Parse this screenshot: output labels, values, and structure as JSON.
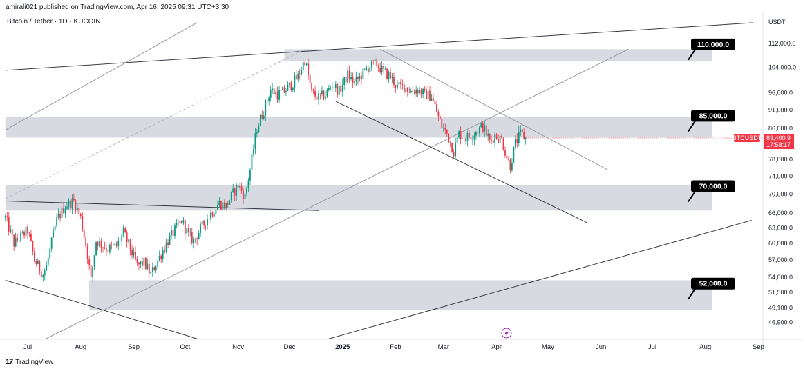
{
  "header": {
    "publisher_line": "amirali021 published on TradingView.com, Apr 16, 2025 09:31 UTC+3:30",
    "symbol_line": "Bitcoin / Tether · 1D · KUCOIN"
  },
  "footer": {
    "brand": "TradingView"
  },
  "colors": {
    "zone": "#d1d4dc",
    "up": "#089981",
    "down": "#f23645",
    "line": "#131722",
    "grid": "#ffffff",
    "callout": "#000000",
    "price_tag": "#f23645"
  },
  "chart_data": {
    "type": "candlestick",
    "symbol": "BTCUSDT",
    "currency": "USDT",
    "current_price": "83,400.9",
    "countdown": "17:58:17",
    "price_scale": "log",
    "ylim": [
      44500,
      120500
    ],
    "y_ticks": [
      "112,000.0",
      "104,000.0",
      "96,000.0",
      "91,000.0",
      "86,000.0",
      "82,000.0",
      "78,000.0",
      "74,000.0",
      "70,000.0",
      "66,000.0",
      "63,000.0",
      "60,000.0",
      "57,000.0",
      "54,000.0",
      "51,500.0",
      "49,100.0",
      "46,900.0"
    ],
    "x_ticks": [
      {
        "label": "Jul",
        "day": 0
      },
      {
        "label": "Aug",
        "day": 31
      },
      {
        "label": "Sep",
        "day": 62
      },
      {
        "label": "Oct",
        "day": 92
      },
      {
        "label": "Nov",
        "day": 123
      },
      {
        "label": "Dec",
        "day": 153
      },
      {
        "label": "2025",
        "day": 184
      },
      {
        "label": "Feb",
        "day": 215
      },
      {
        "label": "Mar",
        "day": 243
      },
      {
        "label": "Apr",
        "day": 274
      },
      {
        "label": "May",
        "day": 304
      },
      {
        "label": "Jun",
        "day": 335
      },
      {
        "label": "Jul",
        "day": 365
      },
      {
        "label": "Aug",
        "day": 396
      },
      {
        "label": "Sep",
        "day": 427
      }
    ],
    "x_start_date": "2024-07-01",
    "price_path": [
      [
        -13,
        65000
      ],
      [
        -8,
        60000
      ],
      [
        0,
        62500
      ],
      [
        4,
        57000
      ],
      [
        9,
        54500
      ],
      [
        11,
        55800
      ],
      [
        17,
        64500
      ],
      [
        22,
        67500
      ],
      [
        27,
        68500
      ],
      [
        31,
        65000
      ],
      [
        35,
        58000
      ],
      [
        37,
        53500
      ],
      [
        40,
        60500
      ],
      [
        47,
        59000
      ],
      [
        52,
        59500
      ],
      [
        56,
        62000
      ],
      [
        64,
        56000
      ],
      [
        68,
        56500
      ],
      [
        72,
        54500
      ],
      [
        77,
        57500
      ],
      [
        82,
        60500
      ],
      [
        87,
        63000
      ],
      [
        90,
        64500
      ],
      [
        94,
        61500
      ],
      [
        97,
        60500
      ],
      [
        105,
        65000
      ],
      [
        112,
        68000
      ],
      [
        116,
        67500
      ],
      [
        119,
        69500
      ],
      [
        123,
        72000
      ],
      [
        127,
        69500
      ],
      [
        130,
        75500
      ],
      [
        134,
        86000
      ],
      [
        138,
        91000
      ],
      [
        142,
        97000
      ],
      [
        146,
        95500
      ],
      [
        150,
        96500
      ],
      [
        154,
        98500
      ],
      [
        158,
        101000
      ],
      [
        162,
        106500
      ],
      [
        166,
        96000
      ],
      [
        170,
        94500
      ],
      [
        174,
        95500
      ],
      [
        178,
        98500
      ],
      [
        182,
        96500
      ],
      [
        187,
        101500
      ],
      [
        191,
        99000
      ],
      [
        196,
        102000
      ],
      [
        200,
        104500
      ],
      [
        204,
        105000
      ],
      [
        208,
        102500
      ],
      [
        212,
        101000
      ],
      [
        216,
        97800
      ],
      [
        220,
        98000
      ],
      [
        224,
        96500
      ],
      [
        228,
        97000
      ],
      [
        232,
        95500
      ],
      [
        236,
        95000
      ],
      [
        240,
        89000
      ],
      [
        242,
        86500
      ],
      [
        245,
        84500
      ],
      [
        249,
        80000
      ],
      [
        252,
        84500
      ],
      [
        256,
        83500
      ],
      [
        259,
        84000
      ],
      [
        263,
        85500
      ],
      [
        266,
        86500
      ],
      [
        270,
        82500
      ],
      [
        273,
        84000
      ],
      [
        277,
        83000
      ],
      [
        280,
        78500
      ],
      [
        282,
        76500
      ],
      [
        285,
        82000
      ],
      [
        288,
        84500
      ],
      [
        291,
        83400.9
      ]
    ],
    "zones": [
      {
        "label": "110,000.0",
        "low": 106000,
        "high": 110000,
        "day_from": 150,
        "day_to": 400
      },
      {
        "label": "85,000.0",
        "low": 83500,
        "high": 89000,
        "day_from": -13,
        "day_to": 400
      },
      {
        "label": "70,000.0",
        "low": 66500,
        "high": 72000,
        "day_from": -13,
        "day_to": 400
      },
      {
        "label": "52,000.0",
        "low": 48700,
        "high": 53500,
        "day_from": 36,
        "day_to": 400
      }
    ],
    "trend_lines": [
      {
        "from": [
          -13,
          103000
        ],
        "to": [
          424,
          119500
        ],
        "style": "solid"
      },
      {
        "from": [
          -13,
          68500
        ],
        "to": [
          170,
          66500
        ],
        "style": "solid"
      },
      {
        "from": [
          -13,
          53500
        ],
        "to": [
          100,
          44500
        ],
        "style": "solid"
      },
      {
        "from": [
          -13,
          85500
        ],
        "to": [
          99,
          119500
        ],
        "style": "light"
      },
      {
        "from": [
          10,
          44500
        ],
        "to": [
          351,
          110000
        ],
        "style": "light"
      },
      {
        "from": [
          -13,
          69000
        ],
        "to": [
          162,
          110000
        ],
        "style": "dashed"
      },
      {
        "from": [
          206,
          110000
        ],
        "to": [
          339,
          75500
        ],
        "style": "light"
      },
      {
        "from": [
          180,
          93500
        ],
        "to": [
          327,
          64000
        ],
        "style": "solid"
      },
      {
        "from": [
          175,
          44500
        ],
        "to": [
          423,
          64500
        ],
        "style": "solid"
      }
    ]
  }
}
